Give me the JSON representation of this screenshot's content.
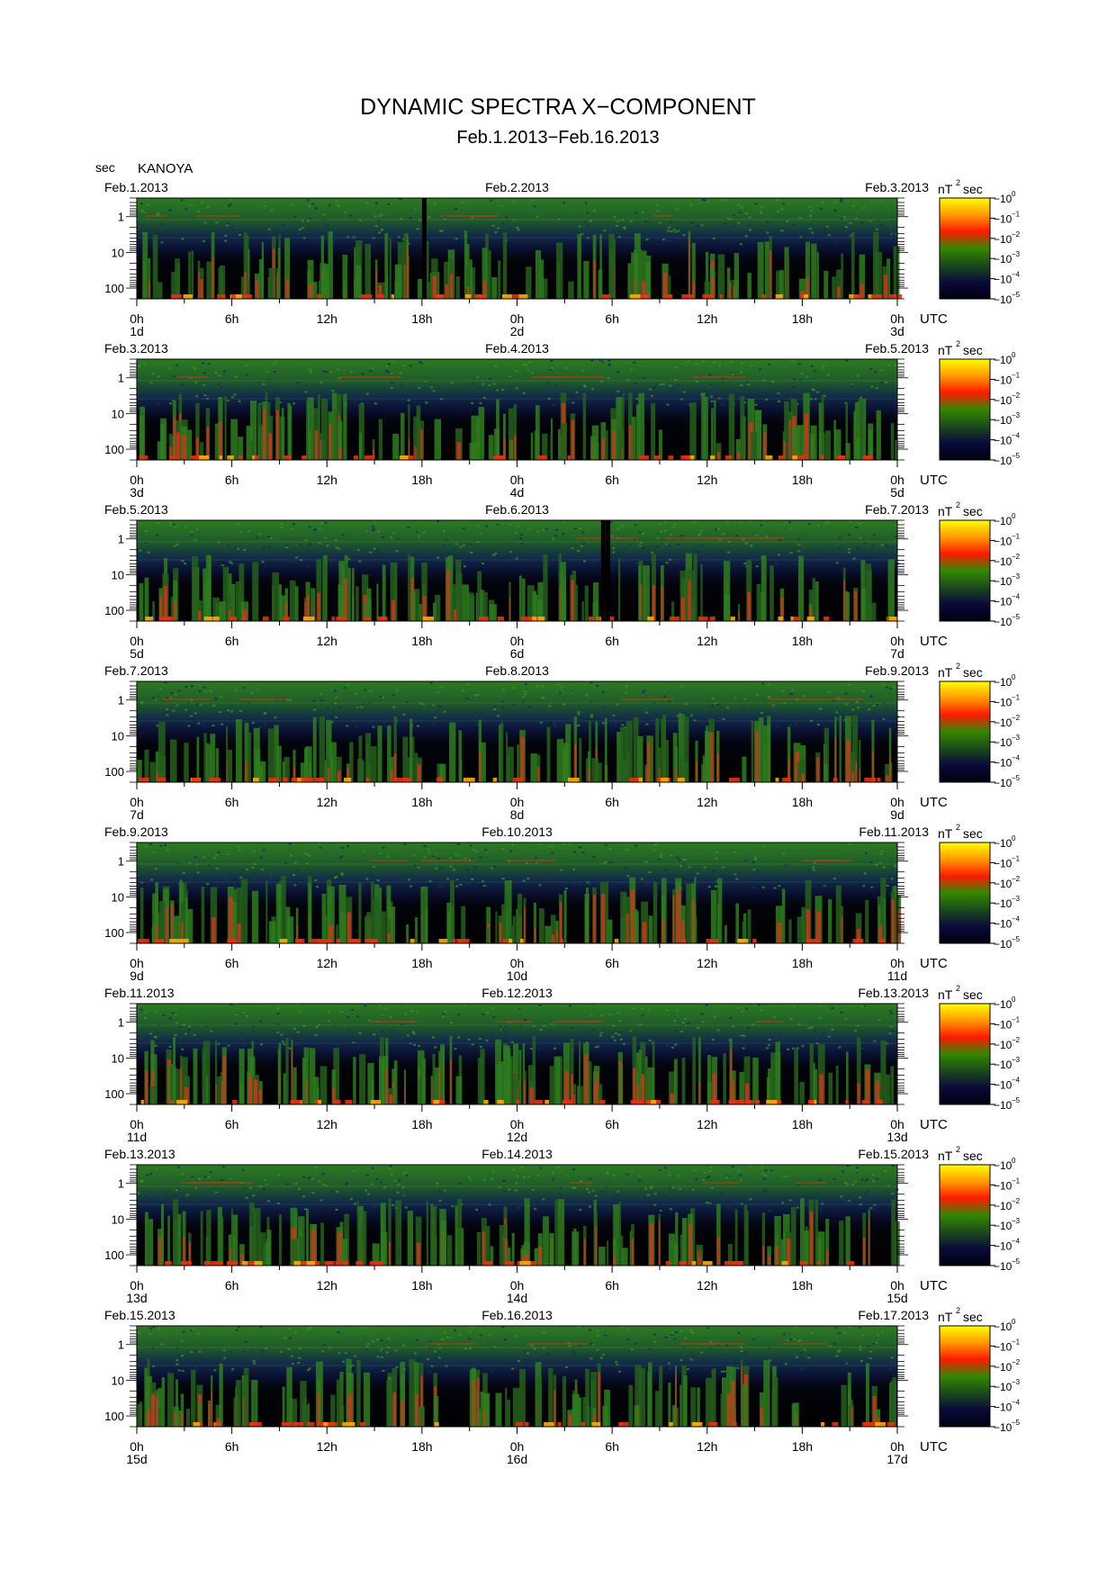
{
  "header": {
    "title": "DYNAMIC SPECTRA X−COMPONENT",
    "subtitle": "Feb.1.2013−Feb.16.2013",
    "y_unit": "sec",
    "station": "KANOYA"
  },
  "axes": {
    "y_tick_labels": [
      "1",
      "10",
      "100"
    ],
    "x_tick_labels": [
      "0h",
      "6h",
      "12h",
      "18h",
      "0h",
      "6h",
      "12h",
      "18h",
      "0h"
    ],
    "x_unit": "UTC"
  },
  "colorbar": {
    "unit_prefix": "nT",
    "unit_exp": "2",
    "unit_suffix": "sec",
    "tick_labels": [
      "−10",
      "−10",
      "−10",
      "−10",
      "−10",
      "−10"
    ],
    "tick_exps": [
      "0",
      "−1",
      "−2",
      "−3",
      "−4",
      "−5"
    ],
    "colors": [
      "#ffff00",
      "#ff9900",
      "#ff1a00",
      "#338800",
      "#1a4a1a",
      "#0a0a3a",
      "#000010"
    ]
  },
  "chart_data": [
    {
      "type": "heatmap",
      "date_left": "Feb.1.2013",
      "date_mid": "Feb.2.2013",
      "date_right": "Feb.3.2013",
      "day_start": "1d",
      "day_mid": "2d",
      "day_end": "3d",
      "data_gaps_hours": [
        18.0
      ]
    },
    {
      "type": "heatmap",
      "date_left": "Feb.3.2013",
      "date_mid": "Feb.4.2013",
      "date_right": "Feb.5.2013",
      "day_start": "3d",
      "day_mid": "4d",
      "day_end": "5d",
      "data_gaps_hours": []
    },
    {
      "type": "heatmap",
      "date_left": "Feb.5.2013",
      "date_mid": "Feb.6.2013",
      "date_right": "Feb.7.2013",
      "day_start": "5d",
      "day_mid": "6d",
      "day_end": "7d",
      "data_gaps_hours": [
        29.3,
        29.6
      ]
    },
    {
      "type": "heatmap",
      "date_left": "Feb.7.2013",
      "date_mid": "Feb.8.2013",
      "date_right": "Feb.9.2013",
      "day_start": "7d",
      "day_mid": "8d",
      "day_end": "9d",
      "data_gaps_hours": []
    },
    {
      "type": "heatmap",
      "date_left": "Feb.9.2013",
      "date_mid": "Feb.10.2013",
      "date_right": "Feb.11.2013",
      "day_start": "9d",
      "day_mid": "10d",
      "day_end": "11d",
      "data_gaps_hours": []
    },
    {
      "type": "heatmap",
      "date_left": "Feb.11.2013",
      "date_mid": "Feb.12.2013",
      "date_right": "Feb.13.2013",
      "day_start": "11d",
      "day_mid": "12d",
      "day_end": "13d",
      "data_gaps_hours": []
    },
    {
      "type": "heatmap",
      "date_left": "Feb.13.2013",
      "date_mid": "Feb.14.2013",
      "date_right": "Feb.15.2013",
      "day_start": "13d",
      "day_mid": "14d",
      "day_end": "15d",
      "data_gaps_hours": []
    },
    {
      "type": "heatmap",
      "date_left": "Feb.15.2013",
      "date_mid": "Feb.16.2013",
      "date_right": "Feb.17.2013",
      "day_start": "15d",
      "day_mid": "16d",
      "day_end": "17d",
      "data_gaps_hours": []
    }
  ]
}
